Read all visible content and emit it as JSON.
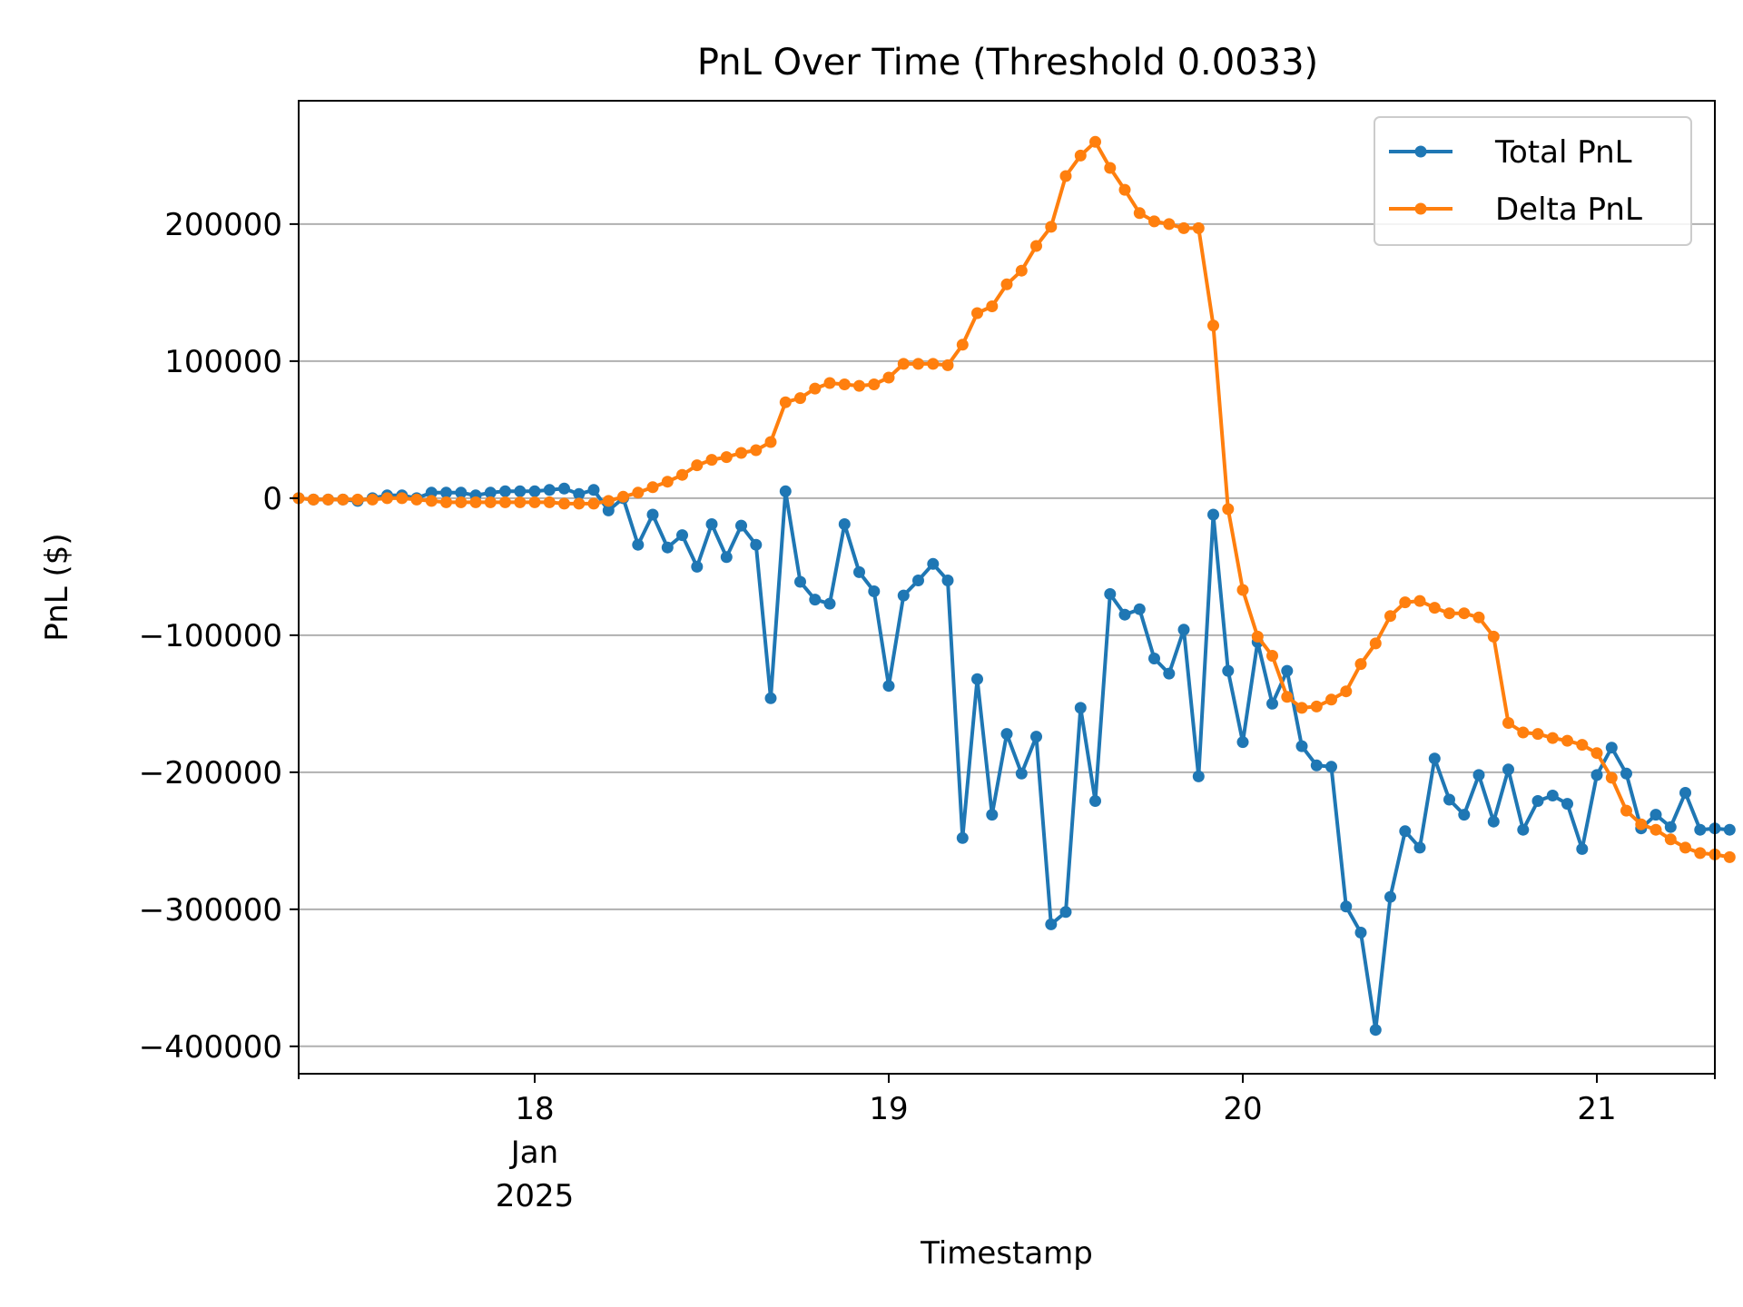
{
  "chart_data": {
    "type": "line",
    "title": "PnL Over Time (Threshold 0.0033)",
    "xlabel": "Timestamp",
    "ylabel": "PnL ($)",
    "xlim": [
      "2025-01-17T08:00",
      "2025-01-21T08:00"
    ],
    "ylim": [
      -420000,
      290000
    ],
    "x_ticks": [
      {
        "value": "2025-01-18T00:00",
        "lines": [
          "18",
          "Jan",
          "2025"
        ]
      },
      {
        "value": "2025-01-19T00:00",
        "lines": [
          "19"
        ]
      },
      {
        "value": "2025-01-20T00:00",
        "lines": [
          "20"
        ]
      },
      {
        "value": "2025-01-21T00:00",
        "lines": [
          "21"
        ]
      }
    ],
    "y_ticks": [
      {
        "value": 200000,
        "label": "200000"
      },
      {
        "value": 100000,
        "label": "100000"
      },
      {
        "value": 0,
        "label": "0"
      },
      {
        "value": -100000,
        "label": "−100000"
      },
      {
        "value": -200000,
        "label": "−200000"
      },
      {
        "value": -300000,
        "label": "−300000"
      },
      {
        "value": -400000,
        "label": "−400000"
      }
    ],
    "grid": "horizontal",
    "legend": "top-right",
    "x_start": "2025-01-17T08:00",
    "x_step_hours": 1,
    "series": [
      {
        "name": "Total PnL",
        "color": "#1f77b4",
        "values": [
          0,
          -1000,
          -1000,
          -1000,
          -2000,
          0,
          2000,
          2000,
          0,
          4000,
          4000,
          4000,
          2000,
          4000,
          5000,
          5000,
          5000,
          6000,
          7000,
          3000,
          6000,
          -9000,
          0,
          -34000,
          -12000,
          -36000,
          -27000,
          -50000,
          -19000,
          -43000,
          -20000,
          -34000,
          -146000,
          5000,
          -61000,
          -74000,
          -77000,
          -19000,
          -54000,
          -68000,
          -137000,
          -71000,
          -60000,
          -48000,
          -60000,
          -248000,
          -132000,
          -231000,
          -172000,
          -201000,
          -174000,
          -311000,
          -302000,
          -153000,
          -221000,
          -70000,
          -85000,
          -81000,
          -117000,
          -128000,
          -96000,
          -203000,
          -12000,
          -126000,
          -178000,
          -105000,
          -150000,
          -126000,
          -181000,
          -195000,
          -196000,
          -298000,
          -317000,
          -388000,
          -291000,
          -243000,
          -255000,
          -190000,
          -220000,
          -231000,
          -202000,
          -236000,
          -198000,
          -242000,
          -221000,
          -217000,
          -223000,
          -256000,
          -202000,
          -182000,
          -201000,
          -241000,
          -231000,
          -240000,
          -215000,
          -242000,
          -241000,
          -242000
        ]
      },
      {
        "name": "Delta PnL",
        "color": "#ff7f0e",
        "values": [
          0,
          -1000,
          -1000,
          -1000,
          -1000,
          -1000,
          0,
          0,
          -1000,
          -2000,
          -3000,
          -3000,
          -3000,
          -3000,
          -3000,
          -3000,
          -3000,
          -3000,
          -4000,
          -4000,
          -4000,
          -2000,
          1000,
          4000,
          8000,
          12000,
          17000,
          24000,
          28000,
          30000,
          33000,
          35000,
          41000,
          70000,
          73000,
          80000,
          84000,
          83000,
          82000,
          83000,
          88000,
          98000,
          98000,
          98000,
          97000,
          112000,
          135000,
          140000,
          156000,
          166000,
          184000,
          198000,
          235000,
          250000,
          260000,
          241000,
          225000,
          208000,
          202000,
          200000,
          197000,
          197000,
          126000,
          -8000,
          -67000,
          -101000,
          -115000,
          -145000,
          -153000,
          -152000,
          -147000,
          -141000,
          -121000,
          -106000,
          -86000,
          -76000,
          -75000,
          -80000,
          -84000,
          -84000,
          -87000,
          -101000,
          -164000,
          -171000,
          -172000,
          -175000,
          -177000,
          -180000,
          -186000,
          -204000,
          -228000,
          -238000,
          -242000,
          -249000,
          -255000,
          -259000,
          -260000,
          -262000
        ]
      }
    ]
  }
}
